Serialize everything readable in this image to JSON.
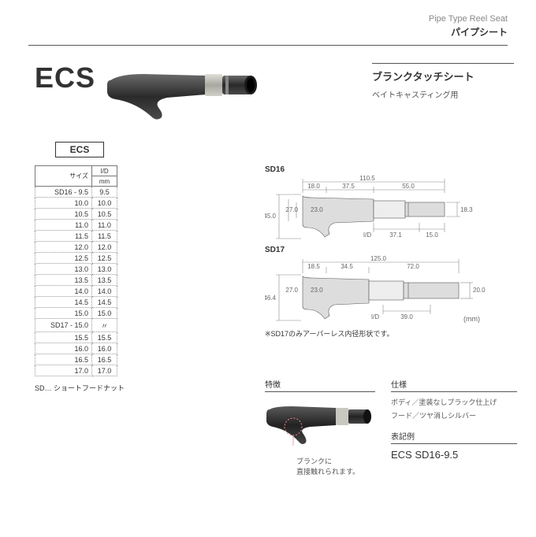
{
  "header": {
    "en": "Pipe Type Reel Seat",
    "jp": "パイプシート"
  },
  "title": "ECS",
  "subtitle": {
    "heading": "ブランクタッチシート",
    "use": "ベイトキャスティング用"
  },
  "table": {
    "label": "ECS",
    "col1_header": "サイズ",
    "col2_header_top": "I/D",
    "col2_header_bot": "mm",
    "rows": [
      {
        "size": "SD16 - 9.5",
        "id": "9.5"
      },
      {
        "size": "10.0",
        "id": "10.0"
      },
      {
        "size": "10.5",
        "id": "10.5"
      },
      {
        "size": "11.0",
        "id": "11.0"
      },
      {
        "size": "11.5",
        "id": "11.5"
      },
      {
        "size": "12.0",
        "id": "12.0"
      },
      {
        "size": "12.5",
        "id": "12.5"
      },
      {
        "size": "13.0",
        "id": "13.0"
      },
      {
        "size": "13.5",
        "id": "13.5"
      },
      {
        "size": "14.0",
        "id": "14.0"
      },
      {
        "size": "14.5",
        "id": "14.5"
      },
      {
        "size": "15.0",
        "id": "15.0"
      },
      {
        "size": "SD17 - 15.0",
        "id": "〃"
      },
      {
        "size": "15.5",
        "id": "15.5"
      },
      {
        "size": "16.0",
        "id": "16.0"
      },
      {
        "size": "16.5",
        "id": "16.5"
      },
      {
        "size": "17.0",
        "id": "17.0"
      }
    ],
    "note": "SD… ショートフードナット"
  },
  "diagrams": {
    "d1": {
      "label": "SD16",
      "total_w": "110.5",
      "seg1": "18.0",
      "seg2": "37.5",
      "seg3": "55.0",
      "left_h": "45.0",
      "inner_h1": "27.0",
      "inner_h2": "23.0",
      "right_h": "18.3",
      "bottom1": "37.1",
      "bottom2": "15.0",
      "id_label": "I/D"
    },
    "d2": {
      "label": "SD17",
      "total_w": "125.0",
      "seg1": "18.5",
      "seg2": "34.5",
      "seg3": "72.0",
      "left_h": "46.4",
      "inner_h1": "27.0",
      "inner_h2": "23.0",
      "right_h": "20.0",
      "bottom1": "39.0",
      "id_label": "I/D",
      "note": "※SD17のみアーバーレス内径形状です。",
      "unit": "(mm)"
    }
  },
  "features": {
    "label": "特徴",
    "annotation": "ブランクに\n直接触れられます。"
  },
  "specs": {
    "label": "仕様",
    "line1": "ボディ／塗装なしブラック仕上げ",
    "line2": "フード／ツヤ消しシルバー",
    "example_label": "表記例",
    "example_value": "ECS SD16-9.5"
  },
  "colors": {
    "body": "#3a3a3a",
    "grip_light": "#5a5a5a",
    "hood": "#c8c8c8",
    "ring": "#b8b8b0",
    "dim_line": "#888888",
    "text": "#333333",
    "pink": "#e88"
  }
}
